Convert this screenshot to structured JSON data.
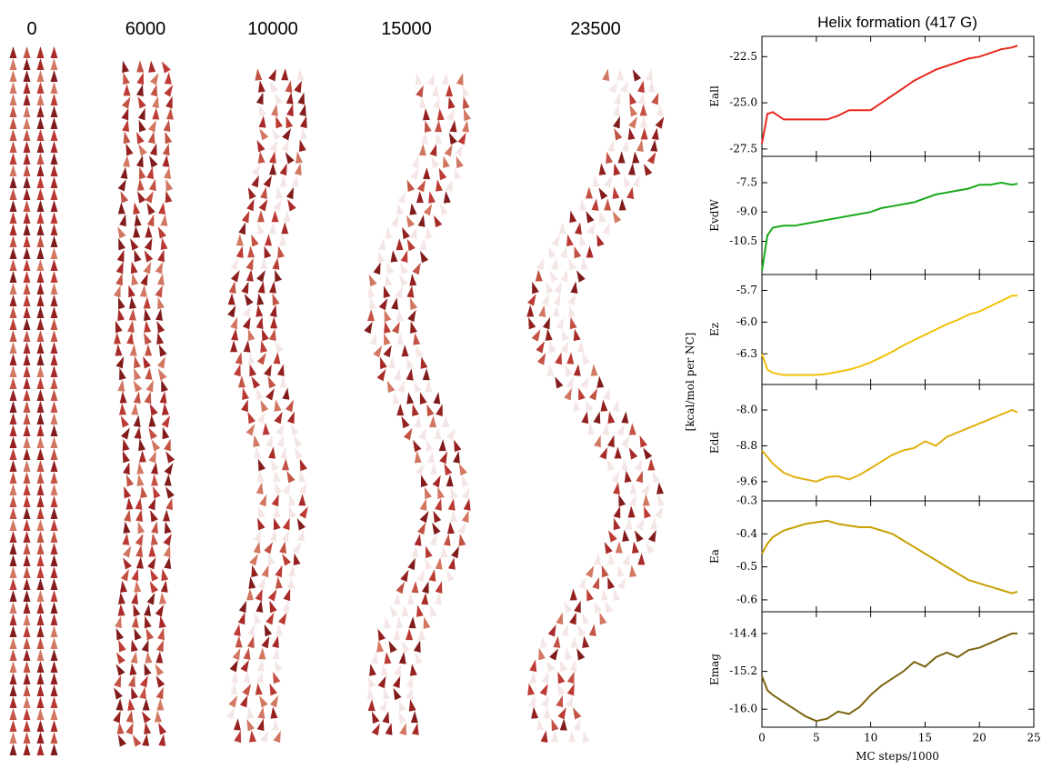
{
  "figure": {
    "title": "Helix formation (417 G)",
    "x_label": "MC steps/1000",
    "y_label": "[kcal/mol per NC]"
  },
  "snapshots": {
    "labels": [
      "0",
      "6000",
      "10000",
      "15000",
      "23500"
    ]
  },
  "chart_data": [
    {
      "type": "line",
      "y_label": "Eall",
      "color": "#e8281e",
      "x": [
        0,
        0.5,
        1,
        2,
        3,
        4,
        5,
        6,
        7,
        8,
        9,
        10,
        11,
        12,
        13,
        14,
        15,
        16,
        17,
        18,
        19,
        20,
        21,
        22,
        23,
        23.5
      ],
      "values": [
        -27.2,
        -25.6,
        -25.5,
        -25.9,
        -25.9,
        -25.9,
        -25.9,
        -25.9,
        -25.7,
        -25.4,
        -25.4,
        -25.4,
        -25.0,
        -24.6,
        -24.2,
        -23.8,
        -23.5,
        -23.2,
        -23.0,
        -22.8,
        -22.6,
        -22.5,
        -22.3,
        -22.1,
        -22.0,
        -21.9
      ],
      "xlim": [
        0,
        25
      ],
      "xticks": [
        0,
        5,
        10,
        15,
        20,
        25
      ],
      "ylim": [
        -27.9,
        -21.4
      ],
      "yticks": [
        -22.5,
        {
          "value": -25,
          "label": "-25.0"
        },
        -27.5
      ]
    },
    {
      "type": "line",
      "y_label": "EvdW",
      "color": "#1aa81a",
      "x": [
        0,
        0.5,
        1,
        2,
        3,
        4,
        5,
        6,
        7,
        8,
        9,
        10,
        11,
        12,
        13,
        14,
        15,
        16,
        17,
        18,
        19,
        20,
        21,
        22,
        23,
        23.5
      ],
      "values": [
        -12.0,
        -10.2,
        -9.8,
        -9.7,
        -9.7,
        -9.6,
        -9.5,
        -9.4,
        -9.3,
        -9.2,
        -9.1,
        -9.0,
        -8.8,
        -8.7,
        -8.6,
        -8.5,
        -8.3,
        -8.1,
        -8.0,
        -7.9,
        -7.8,
        -7.6,
        -7.6,
        -7.5,
        -7.6,
        -7.55
      ],
      "xlim": [
        0,
        25
      ],
      "xticks": [
        0,
        5,
        10,
        15,
        20,
        25
      ],
      "ylim": [
        -12.2,
        -6.15
      ],
      "yticks": [
        -7.5,
        {
          "value": -9,
          "label": "-9.0"
        },
        -10.5
      ]
    },
    {
      "type": "line",
      "y_label": "Ez",
      "color": "#f2c00a",
      "x": [
        0,
        0.5,
        1,
        2,
        3,
        4,
        5,
        6,
        7,
        8,
        9,
        10,
        11,
        12,
        13,
        14,
        15,
        16,
        17,
        18,
        19,
        20,
        21,
        22,
        23,
        23.5
      ],
      "values": [
        -6.3,
        -6.45,
        -6.48,
        -6.5,
        -6.5,
        -6.5,
        -6.5,
        -6.49,
        -6.47,
        -6.45,
        -6.42,
        -6.38,
        -6.33,
        -6.28,
        -6.22,
        -6.17,
        -6.12,
        -6.07,
        -6.02,
        -5.98,
        -5.93,
        -5.9,
        -5.85,
        -5.8,
        -5.75,
        -5.75
      ],
      "xlim": [
        0,
        25
      ],
      "xticks": [
        0,
        5,
        10,
        15,
        20,
        25
      ],
      "ylim": [
        -6.59,
        -5.55
      ],
      "yticks": [
        -5.7,
        {
          "value": -6,
          "label": "-6.0"
        },
        -6.3
      ]
    },
    {
      "type": "line",
      "y_label": "Edd",
      "color": "#e0b010",
      "x": [
        0,
        0.5,
        1,
        2,
        3,
        4,
        5,
        6,
        7,
        8,
        9,
        10,
        11,
        12,
        13,
        14,
        15,
        16,
        17,
        18,
        19,
        20,
        21,
        22,
        23,
        23.5
      ],
      "values": [
        -8.9,
        -9.05,
        -9.2,
        -9.4,
        -9.5,
        -9.55,
        -9.6,
        -9.5,
        -9.48,
        -9.55,
        -9.45,
        -9.3,
        -9.15,
        -9.0,
        -8.9,
        -8.85,
        -8.7,
        -8.8,
        -8.6,
        -8.5,
        -8.4,
        -8.3,
        -8.2,
        -8.1,
        -8.0,
        -8.05
      ],
      "xlim": [
        0,
        25
      ],
      "xticks": [
        0,
        5,
        10,
        15,
        20,
        25
      ],
      "ylim": [
        -10.03,
        -7.43
      ],
      "yticks": [
        {
          "value": -8,
          "label": "-8.0"
        },
        -8.8,
        -9.6
      ]
    },
    {
      "type": "line",
      "y_label": "Ea",
      "color": "#c8a000",
      "x": [
        0,
        0.5,
        1,
        2,
        3,
        4,
        5,
        6,
        7,
        8,
        9,
        10,
        11,
        12,
        13,
        14,
        15,
        16,
        17,
        18,
        19,
        20,
        21,
        22,
        23,
        23.5
      ],
      "values": [
        -0.46,
        -0.43,
        -0.41,
        -0.39,
        -0.38,
        -0.37,
        -0.365,
        -0.36,
        -0.37,
        -0.375,
        -0.38,
        -0.38,
        -0.39,
        -0.4,
        -0.42,
        -0.44,
        -0.46,
        -0.48,
        -0.5,
        -0.52,
        -0.54,
        -0.55,
        -0.56,
        -0.57,
        -0.58,
        -0.575
      ],
      "xlim": [
        0,
        25
      ],
      "xticks": [
        0,
        5,
        10,
        15,
        20,
        25
      ],
      "ylim": [
        -0.636,
        -0.3
      ],
      "yticks": [
        -0.3,
        -0.4,
        -0.5,
        -0.6
      ]
    },
    {
      "type": "line",
      "y_label": "Emag",
      "color": "#7a6410",
      "x": [
        0,
        0.5,
        1,
        2,
        3,
        4,
        5,
        6,
        7,
        8,
        9,
        10,
        11,
        12,
        13,
        14,
        15,
        16,
        17,
        18,
        19,
        20,
        21,
        22,
        23,
        23.5
      ],
      "values": [
        -15.3,
        -15.6,
        -15.7,
        -15.85,
        -16.0,
        -16.15,
        -16.25,
        -16.2,
        -16.05,
        -16.1,
        -15.95,
        -15.7,
        -15.5,
        -15.35,
        -15.2,
        -15.0,
        -15.1,
        -14.9,
        -14.8,
        -14.9,
        -14.75,
        -14.7,
        -14.6,
        -14.5,
        -14.4,
        -14.4
      ],
      "xlim": [
        0,
        25
      ],
      "xticks": [
        0,
        5,
        10,
        15,
        20,
        25
      ],
      "ylim": [
        -16.38,
        -13.94
      ],
      "yticks": [
        -14.4,
        -15.2,
        {
          "value": -16,
          "label": "-16.0"
        }
      ]
    }
  ]
}
